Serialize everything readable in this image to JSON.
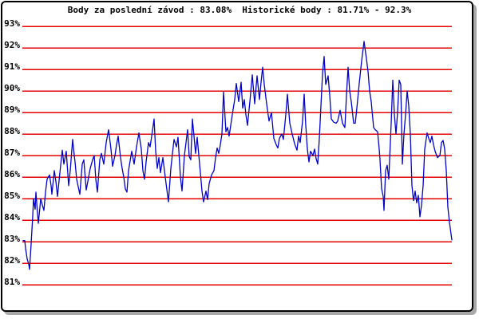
{
  "chart_data": {
    "type": "line",
    "title": "Body za poslední závod : 83.08%  Historické body : 81.71% - 92.3%",
    "last_race_points": "83.08%",
    "historical_points_min": "81.71%",
    "historical_points_max": "92.3%",
    "xlabel": "",
    "ylabel": "",
    "ylim": [
      81,
      93
    ],
    "grid": true,
    "gridline_color": "#e60000",
    "background_color": "#ffffff",
    "frame_border_color": "#000000",
    "frame_shadow_color": "#a9a9a9",
    "y_ticks": [
      {
        "label": "93%",
        "value": 93
      },
      {
        "label": "92%",
        "value": 92
      },
      {
        "label": "91%",
        "value": 91
      },
      {
        "label": "90%",
        "value": 90
      },
      {
        "label": "89%",
        "value": 89
      },
      {
        "label": "88%",
        "value": 88
      },
      {
        "label": "87%",
        "value": 87
      },
      {
        "label": "86%",
        "value": 86
      },
      {
        "label": "85%",
        "value": 85
      },
      {
        "label": "84%",
        "value": 84
      },
      {
        "label": "83%",
        "value": 83
      },
      {
        "label": "82%",
        "value": 82
      },
      {
        "label": "81%",
        "value": 81
      }
    ],
    "series": [
      {
        "name": "historicke-body",
        "color": "#0000cc",
        "points": [
          [
            29,
            83.05
          ],
          [
            31,
            83.05
          ],
          [
            32,
            82.7
          ],
          [
            34,
            82.2
          ],
          [
            36,
            81.95
          ],
          [
            37,
            81.71
          ],
          [
            39,
            82.9
          ],
          [
            41,
            84.2
          ],
          [
            42,
            85.0
          ],
          [
            44,
            84.5
          ],
          [
            45,
            85.3
          ],
          [
            47,
            84.3
          ],
          [
            48,
            83.85
          ],
          [
            50,
            84.6
          ],
          [
            51,
            85.0
          ],
          [
            53,
            84.7
          ],
          [
            55,
            84.45
          ],
          [
            57,
            85.3
          ],
          [
            59,
            85.9
          ],
          [
            62,
            86.1
          ],
          [
            64,
            85.6
          ],
          [
            65,
            85.2
          ],
          [
            68,
            86.3
          ],
          [
            70,
            85.8
          ],
          [
            72,
            85.1
          ],
          [
            75,
            86.2
          ],
          [
            78,
            87.25
          ],
          [
            80,
            86.6
          ],
          [
            83,
            87.2
          ],
          [
            86,
            85.6
          ],
          [
            88,
            86.3
          ],
          [
            91,
            87.75
          ],
          [
            93,
            87.0
          ],
          [
            94,
            86.7
          ],
          [
            96,
            85.9
          ],
          [
            100,
            85.2
          ],
          [
            103,
            86.6
          ],
          [
            105,
            86.8
          ],
          [
            108,
            85.4
          ],
          [
            111,
            86.0
          ],
          [
            113,
            86.4
          ],
          [
            116,
            86.8
          ],
          [
            118,
            87.0
          ],
          [
            120,
            85.9
          ],
          [
            122,
            85.3
          ],
          [
            125,
            86.8
          ],
          [
            127,
            87.1
          ],
          [
            130,
            86.6
          ],
          [
            133,
            87.6
          ],
          [
            136,
            88.2
          ],
          [
            139,
            87.3
          ],
          [
            141,
            86.5
          ],
          [
            144,
            87.0
          ],
          [
            146,
            87.5
          ],
          [
            148,
            87.9
          ],
          [
            151,
            86.9
          ],
          [
            153,
            86.4
          ],
          [
            155,
            86.0
          ],
          [
            157,
            85.45
          ],
          [
            159,
            85.3
          ],
          [
            161,
            86.3
          ],
          [
            165,
            87.2
          ],
          [
            168,
            86.6
          ],
          [
            171,
            87.4
          ],
          [
            174,
            88.05
          ],
          [
            177,
            87.3
          ],
          [
            179,
            86.3
          ],
          [
            181,
            85.9
          ],
          [
            183,
            86.7
          ],
          [
            186,
            87.6
          ],
          [
            188,
            87.4
          ],
          [
            190,
            87.9
          ],
          [
            193,
            88.7
          ],
          [
            195,
            87.2
          ],
          [
            197,
            86.4
          ],
          [
            199,
            86.9
          ],
          [
            201,
            86.2
          ],
          [
            204,
            86.9
          ],
          [
            206,
            86.3
          ],
          [
            208,
            85.7
          ],
          [
            211,
            84.85
          ],
          [
            214,
            86.4
          ],
          [
            218,
            87.75
          ],
          [
            221,
            87.4
          ],
          [
            223,
            87.85
          ],
          [
            226,
            86.0
          ],
          [
            228,
            85.35
          ],
          [
            231,
            87.0
          ],
          [
            235,
            88.2
          ],
          [
            237,
            86.95
          ],
          [
            239,
            86.8
          ],
          [
            241,
            88.7
          ],
          [
            245,
            87.1
          ],
          [
            247,
            87.85
          ],
          [
            251,
            86.2
          ],
          [
            253,
            85.35
          ],
          [
            255,
            84.85
          ],
          [
            258,
            85.35
          ],
          [
            260,
            84.95
          ],
          [
            262,
            85.7
          ],
          [
            265,
            86.1
          ],
          [
            268,
            86.3
          ],
          [
            270,
            86.9
          ],
          [
            272,
            87.35
          ],
          [
            274,
            87.1
          ],
          [
            276,
            87.5
          ],
          [
            278,
            88.0
          ],
          [
            280,
            89.95
          ],
          [
            283,
            88.1
          ],
          [
            285,
            88.3
          ],
          [
            287,
            87.9
          ],
          [
            289,
            88.4
          ],
          [
            291,
            88.9
          ],
          [
            294,
            89.6
          ],
          [
            296,
            90.35
          ],
          [
            299,
            89.5
          ],
          [
            302,
            90.4
          ],
          [
            304,
            89.2
          ],
          [
            306,
            89.6
          ],
          [
            308,
            88.9
          ],
          [
            310,
            88.4
          ],
          [
            313,
            89.5
          ],
          [
            316,
            90.75
          ],
          [
            319,
            89.4
          ],
          [
            322,
            90.7
          ],
          [
            325,
            89.6
          ],
          [
            327,
            90.4
          ],
          [
            329,
            91.1
          ],
          [
            331,
            90.3
          ],
          [
            334,
            89.4
          ],
          [
            337,
            88.6
          ],
          [
            340,
            89.0
          ],
          [
            343,
            87.8
          ],
          [
            346,
            87.5
          ],
          [
            348,
            87.35
          ],
          [
            350,
            87.8
          ],
          [
            353,
            88.0
          ],
          [
            355,
            87.75
          ],
          [
            358,
            88.9
          ],
          [
            360,
            89.85
          ],
          [
            363,
            88.5
          ],
          [
            366,
            88.0
          ],
          [
            369,
            87.55
          ],
          [
            372,
            87.25
          ],
          [
            374,
            87.9
          ],
          [
            376,
            87.6
          ],
          [
            379,
            88.6
          ],
          [
            381,
            89.85
          ],
          [
            383,
            88.4
          ],
          [
            385,
            87.3
          ],
          [
            387,
            86.7
          ],
          [
            389,
            87.2
          ],
          [
            392,
            87.0
          ],
          [
            394,
            87.3
          ],
          [
            396,
            86.85
          ],
          [
            398,
            86.6
          ],
          [
            400,
            87.8
          ],
          [
            402,
            89.3
          ],
          [
            404,
            90.8
          ],
          [
            406,
            91.6
          ],
          [
            408,
            90.3
          ],
          [
            411,
            90.7
          ],
          [
            413,
            89.8
          ],
          [
            415,
            88.7
          ],
          [
            418,
            88.55
          ],
          [
            421,
            88.5
          ],
          [
            423,
            88.6
          ],
          [
            426,
            89.1
          ],
          [
            429,
            88.5
          ],
          [
            432,
            88.3
          ],
          [
            434,
            89.8
          ],
          [
            436,
            91.1
          ],
          [
            438,
            90.0
          ],
          [
            440,
            89.5
          ],
          [
            443,
            88.5
          ],
          [
            445,
            88.5
          ],
          [
            447,
            89.2
          ],
          [
            450,
            90.35
          ],
          [
            453,
            91.4
          ],
          [
            456,
            92.3
          ],
          [
            459,
            91.5
          ],
          [
            461,
            90.9
          ],
          [
            463,
            90.0
          ],
          [
            465,
            89.5
          ],
          [
            468,
            88.3
          ],
          [
            470,
            88.2
          ],
          [
            473,
            88.1
          ],
          [
            475,
            87.3
          ],
          [
            476,
            86.8
          ],
          [
            478,
            85.45
          ],
          [
            480,
            85.1
          ],
          [
            481,
            84.45
          ],
          [
            483,
            86.3
          ],
          [
            485,
            86.55
          ],
          [
            487,
            85.9
          ],
          [
            490,
            88.5
          ],
          [
            492,
            90.5
          ],
          [
            494,
            88.9
          ],
          [
            496,
            88.0
          ],
          [
            498,
            89.0
          ],
          [
            500,
            90.5
          ],
          [
            502,
            90.3
          ],
          [
            504,
            86.6
          ],
          [
            506,
            88.0
          ],
          [
            508,
            88.9
          ],
          [
            510,
            90.0
          ],
          [
            512,
            89.3
          ],
          [
            514,
            88.0
          ],
          [
            516,
            85.6
          ],
          [
            518,
            84.9
          ],
          [
            520,
            85.35
          ],
          [
            522,
            84.8
          ],
          [
            524,
            85.15
          ],
          [
            526,
            84.15
          ],
          [
            528,
            84.7
          ],
          [
            530,
            85.6
          ],
          [
            532,
            87.3
          ],
          [
            535,
            88.05
          ],
          [
            537,
            87.8
          ],
          [
            539,
            87.6
          ],
          [
            541,
            87.9
          ],
          [
            543,
            87.5
          ],
          [
            545,
            87.2
          ],
          [
            548,
            86.9
          ],
          [
            551,
            87.0
          ],
          [
            553,
            87.6
          ],
          [
            555,
            87.7
          ],
          [
            557,
            87.3
          ],
          [
            559,
            86.3
          ],
          [
            561,
            84.6
          ],
          [
            563,
            83.9
          ],
          [
            565,
            83.35
          ],
          [
            566,
            83.08
          ]
        ]
      }
    ]
  }
}
